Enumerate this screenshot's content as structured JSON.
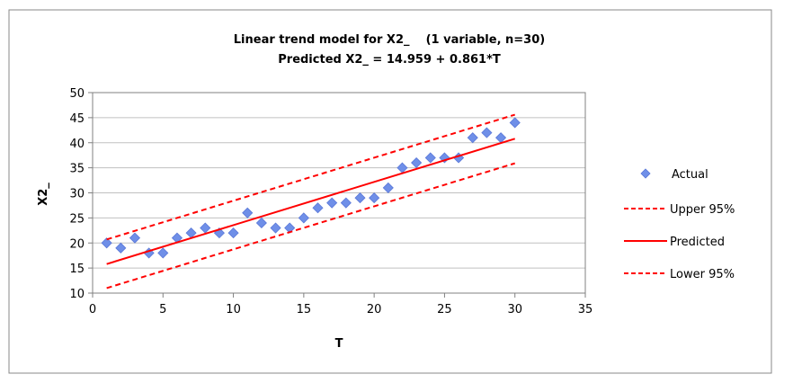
{
  "chart_data": {
    "type": "scatter",
    "title_line1": "Linear trend model for X2_    (1 variable, n=30)",
    "title_line2": "Predicted X2_ = 14.959 + 0.861*T",
    "xlabel": "T",
    "ylabel": "X2_",
    "xlim": [
      0,
      35
    ],
    "ylim": [
      10,
      50
    ],
    "xticks": [
      "0",
      "5",
      "10",
      "15",
      "20",
      "25",
      "30",
      "35"
    ],
    "yticks": [
      "10",
      "15",
      "20",
      "25",
      "30",
      "35",
      "40",
      "45",
      "50"
    ],
    "grid": "horizontal",
    "legend_position": "right",
    "legend": {
      "actual": "Actual",
      "upper": "Upper 95%",
      "predicted": "Predicted",
      "lower": "Lower 95%"
    },
    "series": [
      {
        "name": "Actual",
        "style": "markers",
        "color": "#6f8fe8",
        "x": [
          1,
          2,
          3,
          4,
          5,
          6,
          7,
          8,
          9,
          10,
          11,
          12,
          13,
          14,
          15,
          16,
          17,
          18,
          19,
          20,
          21,
          22,
          23,
          24,
          25,
          26,
          27,
          28,
          29,
          30
        ],
        "y": [
          20,
          19,
          21,
          18,
          18,
          21,
          22,
          23,
          22,
          22,
          26,
          24,
          23,
          23,
          25,
          27,
          28,
          28,
          29,
          29,
          31,
          35,
          36,
          37,
          37,
          37,
          41,
          42,
          41,
          44
        ]
      },
      {
        "name": "Upper 95%",
        "style": "dashed",
        "color": "#ff0000",
        "x": [
          1,
          30
        ],
        "y": [
          20.7,
          45.6
        ]
      },
      {
        "name": "Predicted",
        "style": "solid",
        "color": "#ff0000",
        "x": [
          1,
          30
        ],
        "y": [
          15.8,
          40.8
        ]
      },
      {
        "name": "Lower 95%",
        "style": "dashed",
        "color": "#ff0000",
        "x": [
          1,
          30
        ],
        "y": [
          11.0,
          35.9
        ]
      }
    ]
  }
}
